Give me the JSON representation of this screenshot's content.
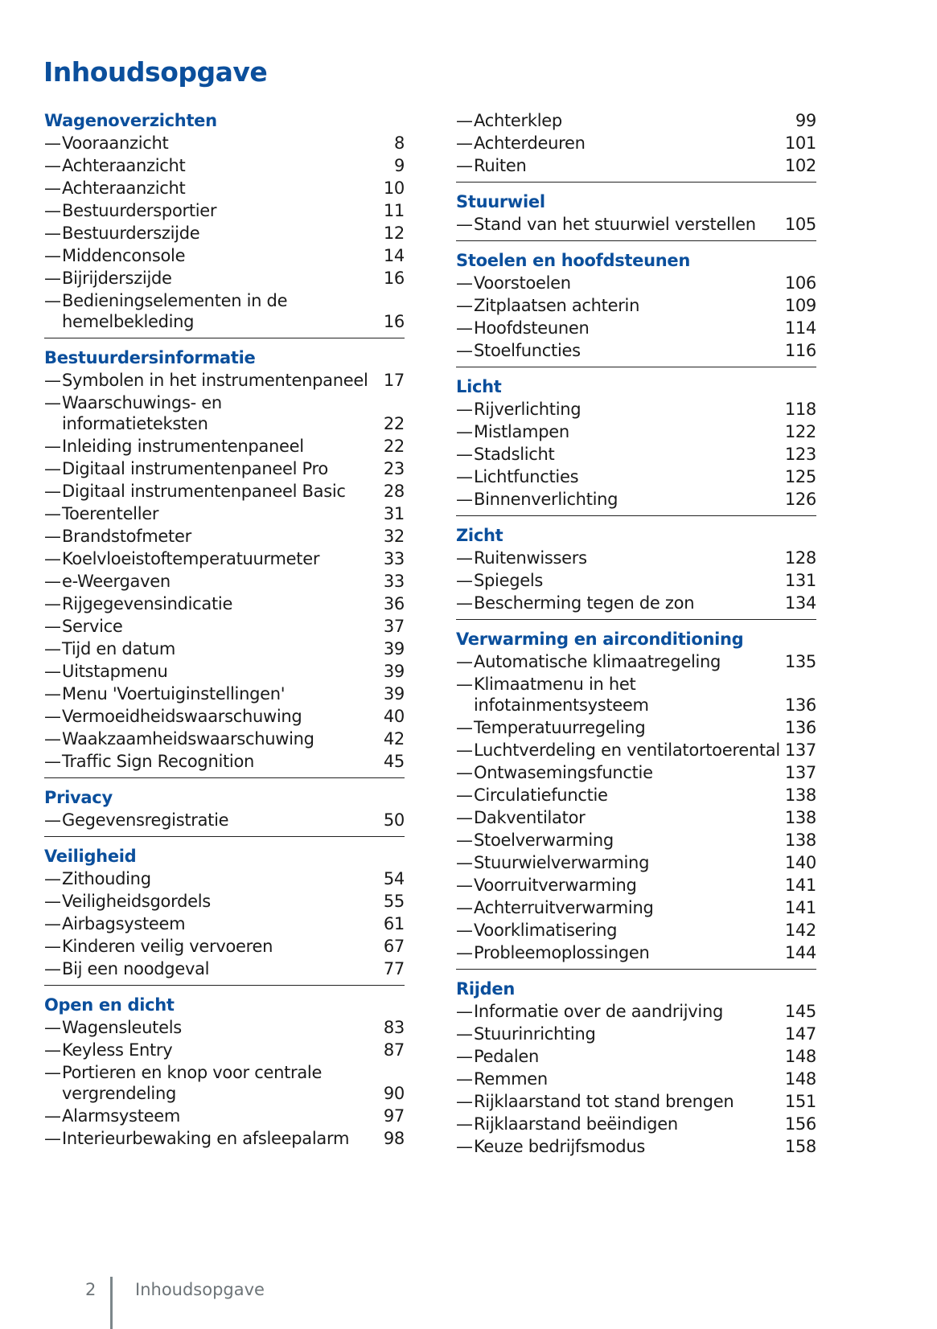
{
  "title": "Inhoudsopgave",
  "dash": "—",
  "columns": [
    [
      {
        "title": "Wagenoverzichten",
        "entries": [
          [
            "Vooraanzicht",
            "8"
          ],
          [
            "Achteraanzicht",
            "9"
          ],
          [
            "Achteraanzicht",
            "10"
          ],
          [
            "Bestuurdersportier",
            "11"
          ],
          [
            "Bestuurderszijde",
            "12"
          ],
          [
            "Middenconsole",
            "14"
          ],
          [
            "Bijrijderszijde",
            "16"
          ],
          [
            "Bedieningselementen in de hemelbekleding",
            "16"
          ]
        ]
      },
      {
        "title": "Bestuurdersinformatie",
        "entries": [
          [
            "Symbolen in het instrumentenpaneel",
            "17"
          ],
          [
            "Waarschuwings- en informatieteksten",
            "22"
          ],
          [
            "Inleiding instrumentenpaneel",
            "22"
          ],
          [
            "Digitaal instrumentenpaneel Pro",
            "23"
          ],
          [
            "Digitaal instrumentenpaneel Basic",
            "28"
          ],
          [
            "Toerenteller",
            "31"
          ],
          [
            "Brandstofmeter",
            "32"
          ],
          [
            "Koelvloeistoftemperatuurmeter",
            "33"
          ],
          [
            "e-Weergaven",
            "33"
          ],
          [
            "Rijgegevensindicatie",
            "36"
          ],
          [
            "Service",
            "37"
          ],
          [
            "Tijd en datum",
            "39"
          ],
          [
            "Uitstapmenu",
            "39"
          ],
          [
            "Menu 'Voertuiginstellingen'",
            "39"
          ],
          [
            "Vermoeidheidswaarschuwing",
            "40"
          ],
          [
            "Waakzaamheidswaarschuwing",
            "42"
          ],
          [
            "Traffic Sign Recognition",
            "45"
          ]
        ]
      },
      {
        "title": "Privacy",
        "entries": [
          [
            "Gegevensregistratie",
            "50"
          ]
        ]
      },
      {
        "title": "Veiligheid",
        "entries": [
          [
            "Zithouding",
            "54"
          ],
          [
            "Veiligheidsgordels",
            "55"
          ],
          [
            "Airbagsysteem",
            "61"
          ],
          [
            "Kinderen veilig vervoeren",
            "67"
          ],
          [
            "Bij een noodgeval",
            "77"
          ]
        ]
      },
      {
        "title": "Open en dicht",
        "entries": [
          [
            "Wagensleutels",
            "83"
          ],
          [
            "Keyless Entry",
            "87"
          ],
          [
            "Portieren en knop voor centrale vergrendeling",
            "90"
          ],
          [
            "Alarmsysteem",
            "97"
          ],
          [
            "Interieurbewaking en afsleepalarm",
            "98"
          ]
        ]
      }
    ],
    [
      {
        "title": null,
        "entries": [
          [
            "Achterklep",
            "99"
          ],
          [
            "Achterdeuren",
            "101"
          ],
          [
            "Ruiten",
            "102"
          ]
        ]
      },
      {
        "title": "Stuurwiel",
        "entries": [
          [
            "Stand van het stuurwiel verstellen",
            "105"
          ]
        ]
      },
      {
        "title": "Stoelen en hoofdsteunen",
        "entries": [
          [
            "Voorstoelen",
            "106"
          ],
          [
            "Zitplaatsen achterin",
            "109"
          ],
          [
            "Hoofdsteunen",
            "114"
          ],
          [
            "Stoelfuncties",
            "116"
          ]
        ]
      },
      {
        "title": "Licht",
        "entries": [
          [
            "Rijverlichting",
            "118"
          ],
          [
            "Mistlampen",
            "122"
          ],
          [
            "Stadslicht",
            "123"
          ],
          [
            "Lichtfuncties",
            "125"
          ],
          [
            "Binnenverlichting",
            "126"
          ]
        ]
      },
      {
        "title": "Zicht",
        "entries": [
          [
            "Ruitenwissers",
            "128"
          ],
          [
            "Spiegels",
            "131"
          ],
          [
            "Bescherming tegen de zon",
            "134"
          ]
        ]
      },
      {
        "title": "Verwarming en airconditioning",
        "entries": [
          [
            "Automatische klimaatregeling",
            "135"
          ],
          [
            "Klimaatmenu in het infotainmentsysteem",
            "136"
          ],
          [
            "Temperatuurregeling",
            "136"
          ],
          [
            "Luchtverdeling en ventilatortoerental",
            "137"
          ],
          [
            "Ontwasemingsfunctie",
            "137"
          ],
          [
            "Circulatiefunctie",
            "138"
          ],
          [
            "Dakventilator",
            "138"
          ],
          [
            "Stoelverwarming",
            "138"
          ],
          [
            "Stuurwielverwarming",
            "140"
          ],
          [
            "Voorruitverwarming",
            "141"
          ],
          [
            "Achterruitverwarming",
            "141"
          ],
          [
            "Voorklimatisering",
            "142"
          ],
          [
            "Probleemoplossingen",
            "144"
          ]
        ]
      },
      {
        "title": "Rijden",
        "entries": [
          [
            "Informatie over de aandrijving",
            "145"
          ],
          [
            "Stuurinrichting",
            "147"
          ],
          [
            "Pedalen",
            "148"
          ],
          [
            "Remmen",
            "148"
          ],
          [
            "Rijklaarstand tot stand brengen",
            "151"
          ],
          [
            "Rijklaarstand beëindigen",
            "156"
          ],
          [
            "Keuze bedrijfsmodus",
            "158"
          ]
        ]
      }
    ]
  ],
  "footer": {
    "page_number": "2",
    "label": "Inhoudsopgave"
  },
  "colors": {
    "heading": "#0b4f9c",
    "text": "#1a1a1a",
    "footer": "#6d7478"
  }
}
